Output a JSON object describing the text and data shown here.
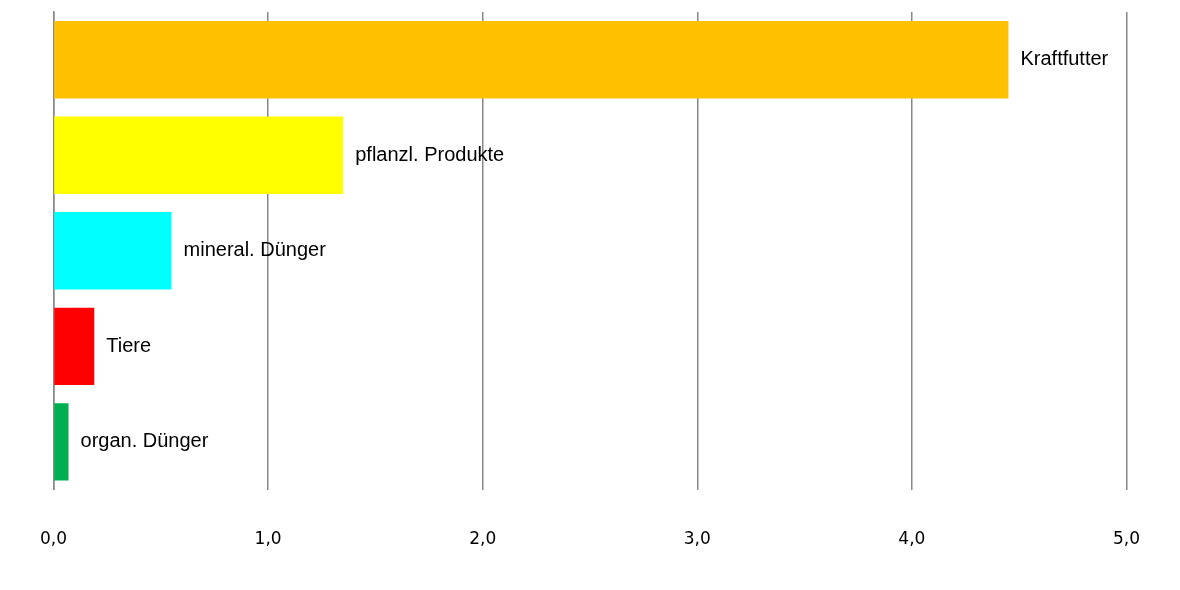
{
  "chart_data": {
    "type": "bar",
    "orientation": "horizontal",
    "categories": [
      "Kraftfutter",
      "pflanzl. Produkte",
      "mineral. Dünger",
      "Tiere",
      "organ. Dünger"
    ],
    "values": [
      4.45,
      1.35,
      0.55,
      0.19,
      0.07
    ],
    "colors": [
      "#ffc000",
      "#ffff00",
      "#00ffff",
      "#ff0000",
      "#00b050"
    ],
    "xlim": [
      0,
      5
    ],
    "xticks": [
      {
        "value": 0,
        "label": "0,0"
      },
      {
        "value": 1,
        "label": "1,0"
      },
      {
        "value": 2,
        "label": "2,0"
      },
      {
        "value": 3,
        "label": "3,0"
      },
      {
        "value": 4,
        "label": "4,0"
      },
      {
        "value": 5,
        "label": "5,0"
      }
    ],
    "grid": "x",
    "tick_labels": "x",
    "legend": false
  }
}
